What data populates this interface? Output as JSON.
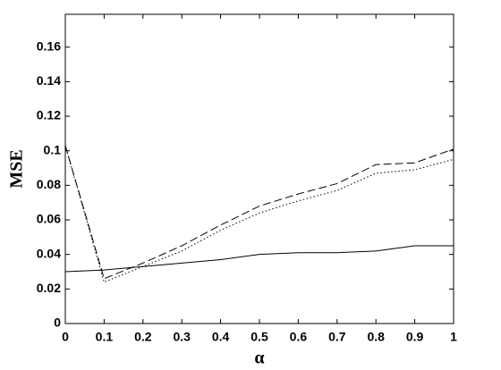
{
  "chart_data": {
    "type": "line",
    "xlabel": "α",
    "ylabel": "MSE",
    "x": [
      0,
      0.1,
      0.2,
      0.3,
      0.4,
      0.5,
      0.6,
      0.7,
      0.8,
      0.9,
      1
    ],
    "series": [
      {
        "color": "#000000",
        "dash": "solid",
        "values": [
          0.03,
          0.031,
          0.033,
          0.035,
          0.037,
          0.04,
          0.041,
          0.041,
          0.042,
          0.045,
          0.045
        ]
      },
      {
        "color": "#000000",
        "dash": "dashed",
        "values": [
          0.103,
          0.026,
          0.035,
          0.045,
          0.057,
          0.068,
          0.075,
          0.081,
          0.092,
          0.093,
          0.101
        ]
      },
      {
        "color": "#000000",
        "dash": "dotted",
        "values": [
          0.103,
          0.024,
          0.033,
          0.042,
          0.054,
          0.064,
          0.071,
          0.077,
          0.087,
          0.089,
          0.095
        ]
      }
    ],
    "xlim": [
      0,
      1
    ],
    "xticks": [
      0,
      0.1,
      0.2,
      0.3,
      0.4,
      0.5,
      0.6,
      0.7,
      0.8,
      0.9,
      1
    ],
    "ylim": [
      0,
      0.179
    ],
    "yticks": [
      0,
      0.02,
      0.04,
      0.06,
      0.08,
      0.1,
      0.12,
      0.14,
      0.16
    ],
    "grid": false
  }
}
